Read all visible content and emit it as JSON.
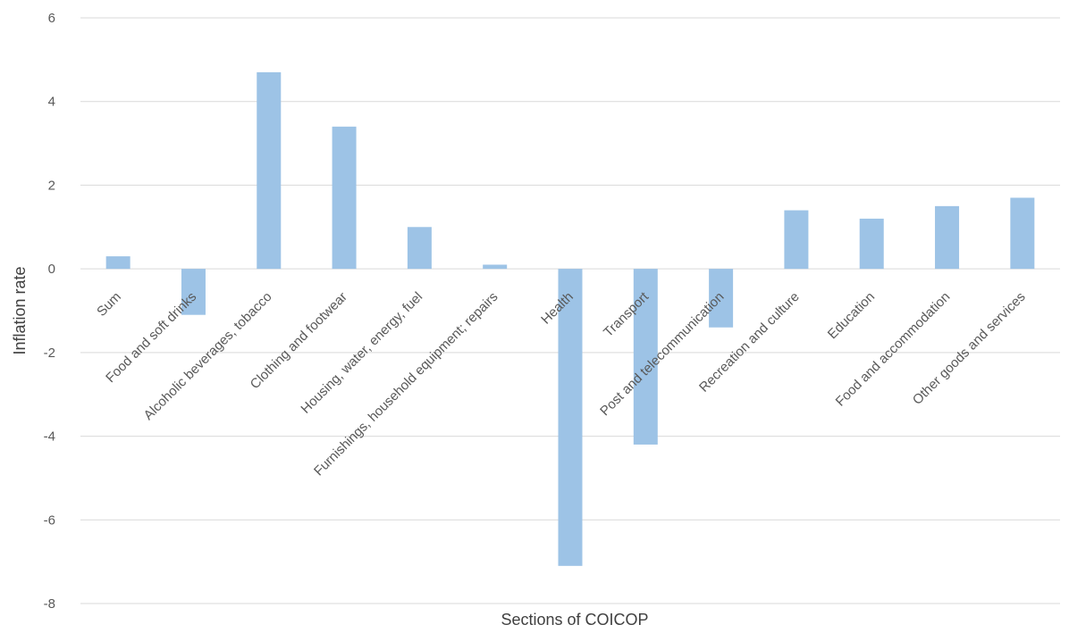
{
  "chart_data": {
    "type": "bar",
    "title": "",
    "xlabel": "Sections of COICOP",
    "ylabel": "Inflation rate",
    "ylim": [
      -8,
      6
    ],
    "yticks": [
      6,
      4,
      2,
      0,
      -2,
      -4,
      -6,
      -8
    ],
    "grid": true,
    "legend": "none",
    "categories": [
      "Sum",
      "Food and soft drinks",
      "Alcoholic beverages, tobacco",
      "Clothing and footwear",
      "Housing, water, energy, fuel",
      "Furnishings, household equipment; repairs",
      "Health",
      "Transport",
      "Post and telecommunication",
      "Recreation and culture",
      "Education",
      "Food and accommodation",
      "Other goods and services"
    ],
    "series": [
      {
        "color": "#9dc3e6",
        "values": [
          0.3,
          -1.1,
          4.7,
          3.4,
          1.0,
          0.1,
          -7.1,
          -4.2,
          -1.4,
          1.4,
          1.2,
          1.5,
          1.7
        ]
      }
    ]
  },
  "colors": {
    "bar": "#9dc3e6",
    "grid": "#d9d9d9",
    "text": "#595959"
  }
}
